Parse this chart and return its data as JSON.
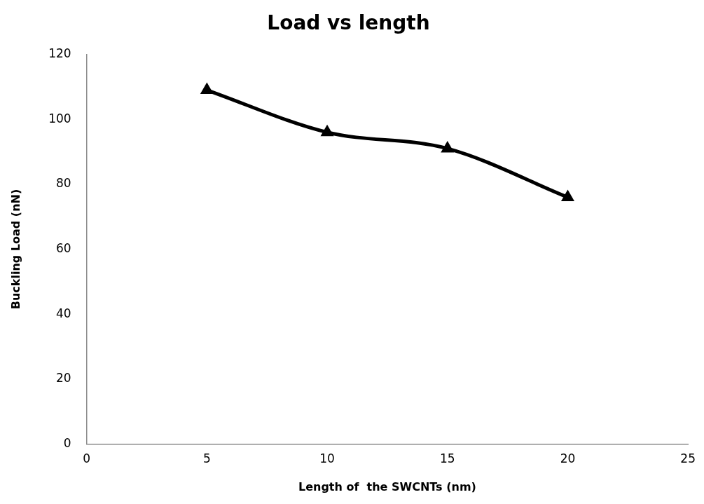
{
  "chart_data": {
    "type": "line",
    "title": "Load vs length",
    "xlabel": "Length of  the SWCNTs (nm)",
    "ylabel": "Buckling Load (nN)",
    "x": [
      5,
      10,
      15,
      20
    ],
    "series": [
      {
        "color": "#000000",
        "values": [
          109,
          96,
          91,
          76
        ]
      }
    ],
    "xlim": [
      0,
      25
    ],
    "xticks": [
      0,
      5,
      10,
      15,
      20,
      25
    ],
    "ylim": [
      0,
      120
    ],
    "yticks": [
      0,
      20,
      40,
      60,
      80,
      100,
      120
    ],
    "grid": false,
    "legend": false,
    "marker": "triangle",
    "line_style": "solid"
  }
}
